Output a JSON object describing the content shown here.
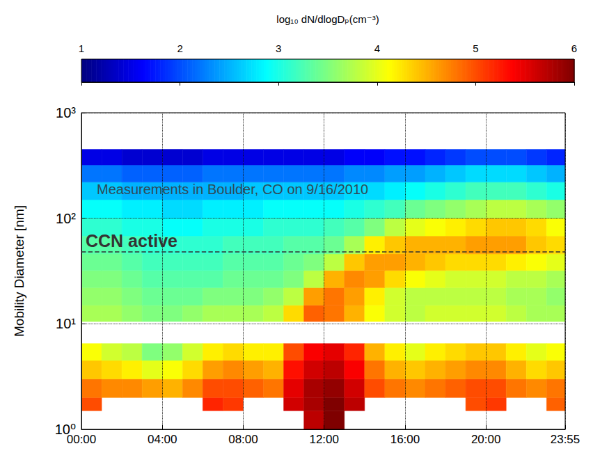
{
  "chart_data": {
    "type": "heatmap",
    "ylabel": "Mobility Diameter [nm]",
    "log": "y",
    "grid": true,
    "xlim": [
      0,
      23.9167
    ],
    "xticks": [
      {
        "value": 0,
        "label": "00:00"
      },
      {
        "value": 4,
        "label": "04:00"
      },
      {
        "value": 8,
        "label": "08:00"
      },
      {
        "value": 12,
        "label": "12:00"
      },
      {
        "value": 16,
        "label": "16:00"
      },
      {
        "value": 20,
        "label": "20:00"
      },
      {
        "value": 23.9167,
        "label": "23:55"
      }
    ],
    "ylim": [
      1,
      1000
    ],
    "yticks": [
      {
        "value": 1,
        "label": "10⁰"
      },
      {
        "value": 10,
        "label": "10¹"
      },
      {
        "value": 100,
        "label": "10²"
      },
      {
        "value": 1000,
        "label": "10³"
      }
    ],
    "x_edges": [
      0,
      1,
      2,
      3,
      4,
      5,
      6,
      7,
      8,
      9,
      10,
      11,
      12,
      13,
      14,
      15,
      16,
      17,
      18,
      19,
      20,
      21,
      22,
      23,
      24
    ],
    "y_edges": [
      1.0,
      1.5,
      2.0,
      3.0,
      4.5,
      6.5,
      10.5,
      15,
      22,
      32,
      46,
      68,
      100,
      150,
      220,
      320,
      450
    ],
    "values": [
      [
        null,
        null,
        null,
        null,
        null,
        null,
        null,
        null,
        null,
        null,
        null,
        5.7,
        6.0,
        null,
        null,
        null,
        null,
        null,
        null,
        null,
        null,
        null,
        null,
        null
      ],
      [
        5.0,
        null,
        null,
        null,
        null,
        null,
        5.2,
        5.1,
        null,
        null,
        5.6,
        5.8,
        6.0,
        5.7,
        null,
        null,
        null,
        null,
        null,
        5.0,
        5.1,
        null,
        null,
        4.9
      ],
      [
        4.8,
        4.7,
        4.7,
        4.6,
        4.5,
        4.7,
        5.0,
        5.0,
        4.9,
        4.8,
        5.5,
        5.8,
        5.9,
        5.6,
        5.0,
        4.8,
        4.7,
        4.8,
        4.9,
        5.0,
        5.0,
        4.8,
        4.7,
        4.8
      ],
      [
        4.4,
        4.3,
        4.2,
        4.0,
        4.1,
        4.3,
        4.6,
        4.7,
        4.6,
        4.5,
        5.3,
        5.6,
        5.7,
        5.4,
        4.8,
        4.5,
        4.4,
        4.5,
        4.6,
        4.7,
        4.7,
        4.5,
        4.3,
        4.4
      ],
      [
        4.1,
        3.9,
        3.8,
        3.5,
        3.6,
        3.9,
        4.2,
        4.3,
        4.2,
        4.2,
        5.0,
        5.4,
        5.5,
        5.2,
        4.5,
        4.2,
        4.0,
        4.2,
        4.3,
        4.4,
        4.4,
        4.2,
        4.0,
        4.1
      ],
      [
        null,
        null,
        null,
        null,
        null,
        null,
        null,
        null,
        null,
        null,
        null,
        null,
        null,
        null,
        null,
        null,
        null,
        null,
        null,
        null,
        null,
        null,
        null,
        null
      ],
      [
        3.7,
        3.7,
        3.6,
        3.5,
        3.5,
        3.6,
        3.7,
        3.7,
        3.7,
        3.8,
        4.3,
        4.9,
        4.8,
        4.5,
        4.1,
        3.9,
        3.8,
        3.9,
        3.9,
        3.9,
        3.9,
        3.8,
        3.7,
        3.7
      ],
      [
        3.6,
        3.6,
        3.5,
        3.4,
        3.4,
        3.4,
        3.5,
        3.5,
        3.5,
        3.6,
        3.8,
        4.6,
        4.8,
        4.6,
        4.2,
        3.9,
        3.8,
        3.8,
        3.8,
        3.8,
        3.8,
        3.7,
        3.7,
        3.6
      ],
      [
        3.5,
        3.5,
        3.4,
        3.3,
        3.3,
        3.3,
        3.3,
        3.4,
        3.4,
        3.4,
        3.5,
        3.8,
        4.5,
        4.7,
        4.6,
        4.3,
        4.1,
        4.0,
        3.9,
        3.9,
        3.9,
        3.8,
        3.8,
        3.7
      ],
      [
        3.4,
        3.4,
        3.3,
        3.2,
        3.2,
        3.2,
        3.2,
        3.3,
        3.3,
        3.3,
        3.4,
        3.5,
        3.8,
        4.4,
        4.6,
        4.6,
        4.5,
        4.4,
        4.3,
        4.3,
        4.3,
        4.2,
        4.1,
        4.0
      ],
      [
        3.3,
        3.3,
        3.2,
        3.1,
        3.1,
        3.1,
        3.1,
        3.2,
        3.2,
        3.2,
        3.3,
        3.3,
        3.4,
        3.7,
        4.2,
        4.4,
        4.5,
        4.5,
        4.5,
        4.6,
        4.6,
        4.6,
        4.4,
        4.3
      ],
      [
        3.1,
        3.1,
        3.0,
        3.0,
        2.9,
        2.9,
        3.0,
        3.0,
        3.0,
        3.1,
        3.1,
        3.1,
        3.2,
        3.3,
        3.5,
        3.8,
        4.0,
        4.1,
        4.2,
        4.3,
        4.4,
        4.4,
        4.3,
        4.1
      ],
      [
        2.9,
        2.9,
        2.8,
        2.8,
        2.7,
        2.7,
        2.8,
        2.8,
        2.8,
        2.9,
        2.9,
        2.9,
        2.9,
        3.0,
        3.1,
        3.2,
        3.4,
        3.5,
        3.6,
        3.7,
        3.8,
        3.8,
        3.7,
        3.6
      ],
      [
        2.6,
        2.6,
        2.5,
        2.5,
        2.5,
        2.5,
        2.5,
        2.5,
        2.6,
        2.6,
        2.6,
        2.6,
        2.6,
        2.7,
        2.7,
        2.8,
        2.9,
        3.0,
        3.1,
        3.2,
        3.2,
        3.2,
        3.1,
        3.0
      ],
      [
        2.2,
        2.2,
        2.1,
        2.1,
        2.1,
        2.1,
        2.2,
        2.2,
        2.2,
        2.2,
        2.2,
        2.2,
        2.2,
        2.3,
        2.3,
        2.4,
        2.4,
        2.5,
        2.6,
        2.7,
        2.7,
        2.7,
        2.6,
        2.5
      ],
      [
        1.5,
        1.5,
        1.4,
        1.4,
        1.4,
        1.4,
        1.5,
        1.5,
        1.5,
        1.5,
        1.5,
        1.5,
        1.5,
        1.6,
        1.6,
        1.7,
        1.7,
        1.8,
        1.9,
        2.0,
        2.0,
        2.0,
        1.9,
        1.8
      ]
    ],
    "colorbar": {
      "label": "log₁₀ dN/dlogDₚ(cm⁻³)",
      "range": [
        1,
        6
      ],
      "ticks": [
        1,
        2,
        3,
        4,
        5,
        6
      ],
      "colors": [
        "#00007f",
        "#0000ff",
        "#007fff",
        "#00ffff",
        "#7fff7f",
        "#ffff00",
        "#ff7f00",
        "#ff0000",
        "#7f0000"
      ]
    },
    "annotations": [
      {
        "text": "Measurements in Boulder, CO on 9/16/2010"
      },
      {
        "text": "CCN active",
        "y": 48,
        "line_style": "dashed"
      }
    ]
  }
}
